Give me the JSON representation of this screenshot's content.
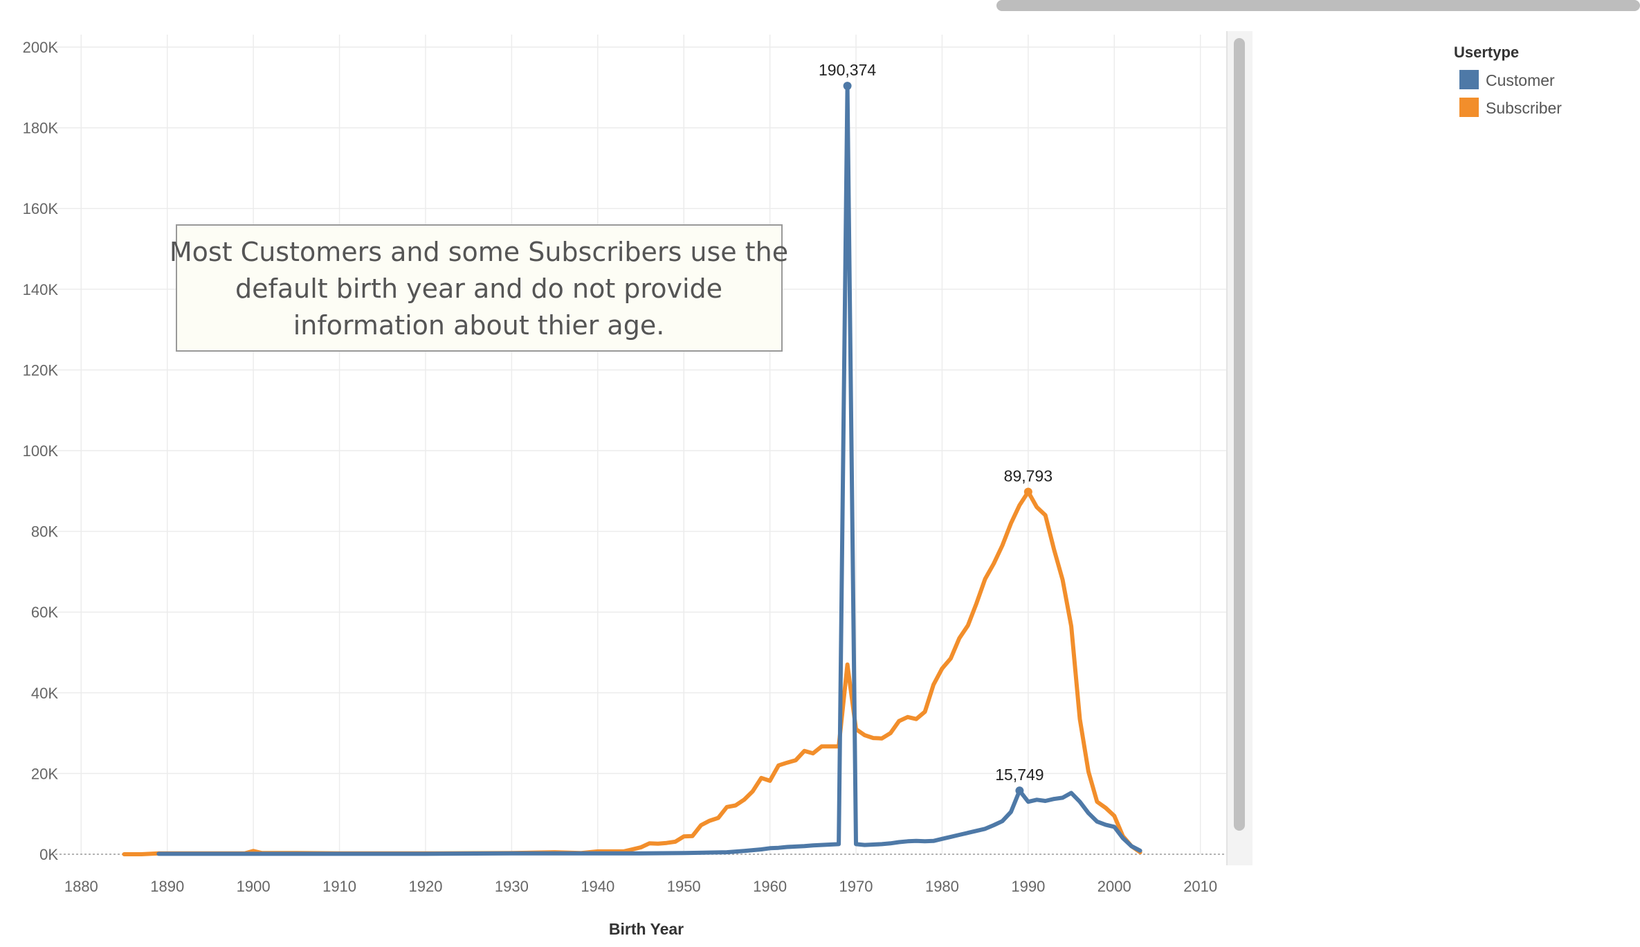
{
  "chart_data": {
    "type": "line",
    "xlabel": "Birth Year",
    "ylabel": "",
    "xlim": [
      1877,
      2013
    ],
    "ylim": [
      0,
      200000
    ],
    "x_ticks": [
      1880,
      1890,
      1900,
      1910,
      1920,
      1930,
      1940,
      1950,
      1960,
      1970,
      1980,
      1990,
      2000,
      2010
    ],
    "y_ticks": [
      0,
      20000,
      40000,
      60000,
      80000,
      100000,
      120000,
      140000,
      160000,
      180000,
      200000
    ],
    "y_tick_labels": [
      "0K",
      "20K",
      "40K",
      "60K",
      "80K",
      "100K",
      "120K",
      "140K",
      "160K",
      "180K",
      "200K"
    ],
    "grid": true,
    "legend": {
      "title": "Usertype",
      "position": "top-right",
      "items": [
        {
          "name": "Customer",
          "color": "#4e79a7"
        },
        {
          "name": "Subscriber",
          "color": "#f28e2b"
        }
      ]
    },
    "annotation": {
      "lines": [
        "Most Customers and some Subscribers use the",
        "default birth year and do not provide",
        "information about thier age."
      ]
    },
    "series": [
      {
        "name": "Customer",
        "color": "#4e79a7",
        "x": [
          1889,
          1890,
          1895,
          1900,
          1905,
          1910,
          1920,
          1930,
          1935,
          1940,
          1945,
          1950,
          1955,
          1957,
          1959,
          1960,
          1961,
          1962,
          1963,
          1964,
          1965,
          1966,
          1967,
          1968,
          1969,
          1970,
          1971,
          1972,
          1973,
          1974,
          1975,
          1976,
          1977,
          1978,
          1979,
          1980,
          1981,
          1982,
          1983,
          1984,
          1985,
          1986,
          1987,
          1988,
          1989,
          1990,
          1991,
          1992,
          1993,
          1994,
          1995,
          1996,
          1997,
          1998,
          1999,
          2000,
          2001,
          2002,
          2003
        ],
        "y": [
          100,
          100,
          100,
          100,
          100,
          100,
          100,
          200,
          200,
          200,
          200,
          300,
          500,
          800,
          1200,
          1500,
          1600,
          1800,
          1900,
          2000,
          2200,
          2300,
          2400,
          2500,
          190374,
          2500,
          2300,
          2400,
          2500,
          2700,
          3000,
          3200,
          3300,
          3200,
          3300,
          3800,
          4300,
          4800,
          5300,
          5800,
          6300,
          7200,
          8200,
          10500,
          15749,
          13000,
          13500,
          13200,
          13700,
          14000,
          15200,
          13000,
          10200,
          8100,
          7300,
          6800,
          4000,
          2000,
          900
        ]
      },
      {
        "name": "Subscriber",
        "color": "#f28e2b",
        "x": [
          1885,
          1887,
          1889,
          1895,
          1899,
          1900,
          1901,
          1905,
          1910,
          1920,
          1930,
          1935,
          1938,
          1940,
          1941,
          1942,
          1943,
          1944,
          1945,
          1946,
          1947,
          1948,
          1949,
          1950,
          1951,
          1952,
          1953,
          1954,
          1955,
          1956,
          1957,
          1958,
          1959,
          1960,
          1961,
          1962,
          1963,
          1964,
          1965,
          1966,
          1967,
          1968,
          1969,
          1970,
          1971,
          1972,
          1973,
          1974,
          1975,
          1976,
          1977,
          1978,
          1979,
          1980,
          1981,
          1982,
          1983,
          1984,
          1985,
          1986,
          1987,
          1988,
          1989,
          1990,
          1991,
          1992,
          1993,
          1994,
          1995,
          1996,
          1997,
          1998,
          1999,
          2000,
          2001,
          2002,
          2003
        ],
        "y": [
          0,
          0,
          200,
          200,
          200,
          800,
          300,
          300,
          200,
          200,
          300,
          500,
          300,
          700,
          700,
          700,
          700,
          1200,
          1700,
          2700,
          2600,
          2800,
          3100,
          4400,
          4500,
          7200,
          8300,
          9000,
          11700,
          12100,
          13500,
          15600,
          18900,
          18200,
          22000,
          22700,
          23300,
          25600,
          25000,
          26700,
          26700,
          26700,
          47000,
          31000,
          29500,
          28800,
          28700,
          30000,
          33000,
          34000,
          33500,
          35300,
          42000,
          46000,
          48500,
          53500,
          56700,
          62200,
          68200,
          72000,
          76500,
          82000,
          86500,
          89793,
          86000,
          84000,
          75500,
          68000,
          56500,
          33500,
          20500,
          13000,
          11500,
          9500,
          4500,
          2000,
          500
        ]
      }
    ],
    "data_labels": [
      {
        "series": "Customer",
        "x": 1969,
        "y": 190374,
        "text": "190,374"
      },
      {
        "series": "Subscriber",
        "x": 1990,
        "y": 89793,
        "text": "89,793"
      },
      {
        "series": "Customer",
        "x": 1989,
        "y": 15749,
        "text": "15,749"
      }
    ]
  }
}
